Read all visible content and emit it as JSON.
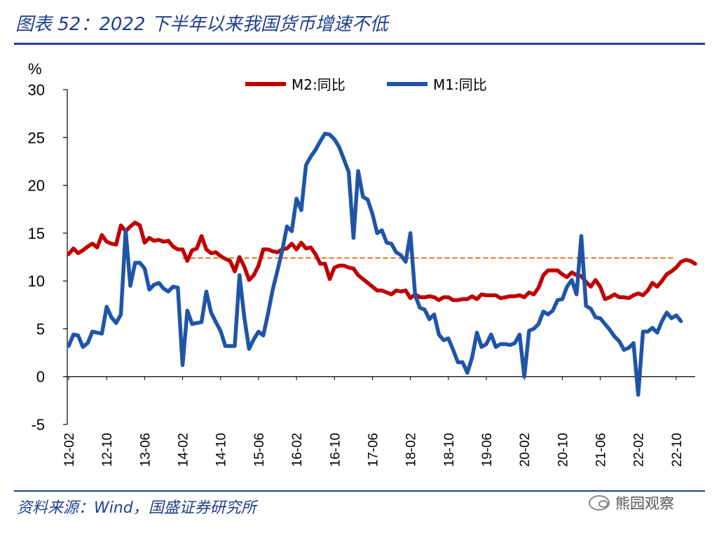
{
  "header": {
    "title": "图表 52：2022 下半年以来我国货币增速不低"
  },
  "footer": {
    "source": "资料来源：Wind，国盛证券研究所",
    "watermark": "熊园观察"
  },
  "colors": {
    "m2": "#c00000",
    "m1": "#1f55a8",
    "ref": "#ed7d31",
    "title": "#1f3f8f"
  },
  "chart_data": {
    "type": "line",
    "title": "2022 下半年以来我国货币增速不低",
    "ylabel": "%",
    "xlabel": "",
    "ylim": [
      -5,
      30
    ],
    "yticks": [
      30,
      25,
      20,
      15,
      10,
      5,
      0,
      -5
    ],
    "tick_labels": [
      "12-02",
      "12-10",
      "13-06",
      "14-02",
      "14-10",
      "15-06",
      "16-02",
      "16-10",
      "17-06",
      "18-02",
      "18-10",
      "19-06",
      "20-02",
      "20-10",
      "21-06",
      "22-02",
      "22-10"
    ],
    "tick_index": [
      0,
      8,
      16,
      24,
      32,
      40,
      48,
      56,
      64,
      72,
      80,
      88,
      96,
      104,
      112,
      120,
      128
    ],
    "legend": [
      "M2:同比",
      "M1:同比"
    ],
    "legend_position": "top-center",
    "reference_line": {
      "value": 12.4,
      "from_index": 24,
      "to_index": 128,
      "style": "dashed"
    },
    "series": [
      {
        "name": "M2:同比",
        "values": [
          12.8,
          13.4,
          12.9,
          13.2,
          13.6,
          13.9,
          13.5,
          14.8,
          14.1,
          13.9,
          13.8,
          15.8,
          15.2,
          15.7,
          16.1,
          15.8,
          14.0,
          14.5,
          14.2,
          14.3,
          14.1,
          14.2,
          13.6,
          13.3,
          13.3,
          12.1,
          13.2,
          13.4,
          14.7,
          13.3,
          12.9,
          13.0,
          12.6,
          12.3,
          12.1,
          11.0,
          12.5,
          11.5,
          10.1,
          10.6,
          11.6,
          13.3,
          13.3,
          13.1,
          13.0,
          13.3,
          13.4,
          13.9,
          13.3,
          14.0,
          13.4,
          13.5,
          12.8,
          11.8,
          11.8,
          10.2,
          11.4,
          11.6,
          11.6,
          11.4,
          11.3,
          10.6,
          10.2,
          9.8,
          9.4,
          9.0,
          9.0,
          8.8,
          8.6,
          9.0,
          8.9,
          9.0,
          8.2,
          8.6,
          8.3,
          8.3,
          8.4,
          8.3,
          8.0,
          8.3,
          8.3,
          8.0,
          8.0,
          8.1,
          8.1,
          8.4,
          8.1,
          8.6,
          8.5,
          8.5,
          8.5,
          8.2,
          8.3,
          8.4,
          8.4,
          8.5,
          8.3,
          8.8,
          8.6,
          9.3,
          10.6,
          11.1,
          11.1,
          11.1,
          10.7,
          10.4,
          10.9,
          10.6,
          10.5,
          9.9,
          9.4,
          10.1,
          9.4,
          8.1,
          8.3,
          8.6,
          8.3,
          8.3,
          8.2,
          8.5,
          8.7,
          8.5,
          9.0,
          9.8,
          9.4,
          10.0,
          10.7,
          11.0,
          11.4,
          12.0,
          12.2,
          12.1,
          11.8
        ]
      },
      {
        "name": "M1:同比",
        "values": [
          3.2,
          4.4,
          4.3,
          3.1,
          3.5,
          4.7,
          4.6,
          4.5,
          7.3,
          6.2,
          5.6,
          6.5,
          15.3,
          9.5,
          11.9,
          11.9,
          11.3,
          9.1,
          9.6,
          9.8,
          9.2,
          8.9,
          9.4,
          9.3,
          1.2,
          6.9,
          5.5,
          5.6,
          5.7,
          8.9,
          6.7,
          5.7,
          4.8,
          3.2,
          3.2,
          3.2,
          10.6,
          6.2,
          2.9,
          3.9,
          4.7,
          4.3,
          6.6,
          9.1,
          11.1,
          13.2,
          15.7,
          15.2,
          18.6,
          17.4,
          22.1,
          23.0,
          23.7,
          24.6,
          25.4,
          25.3,
          24.8,
          24.0,
          22.7,
          21.4,
          14.5,
          21.5,
          18.8,
          18.5,
          17.0,
          15.0,
          15.3,
          14.0,
          13.9,
          13.0,
          12.7,
          12.0,
          15.0,
          8.5,
          7.2,
          7.0,
          6.0,
          6.5,
          4.4,
          3.8,
          4.0,
          2.8,
          1.5,
          1.5,
          0.4,
          2.0,
          4.6,
          3.1,
          3.4,
          4.4,
          3.1,
          3.4,
          3.4,
          3.3,
          3.5,
          4.4,
          0.0,
          4.8,
          5.0,
          5.5,
          6.8,
          6.5,
          6.9,
          8.0,
          8.1,
          9.4,
          10.1,
          8.6,
          14.7,
          7.4,
          7.1,
          6.2,
          6.1,
          5.5,
          4.9,
          4.2,
          3.7,
          2.8,
          3.0,
          3.5,
          -1.9,
          4.7,
          4.7,
          5.1,
          4.6,
          5.8,
          6.7,
          6.1,
          6.4,
          5.8
        ]
      }
    ]
  }
}
